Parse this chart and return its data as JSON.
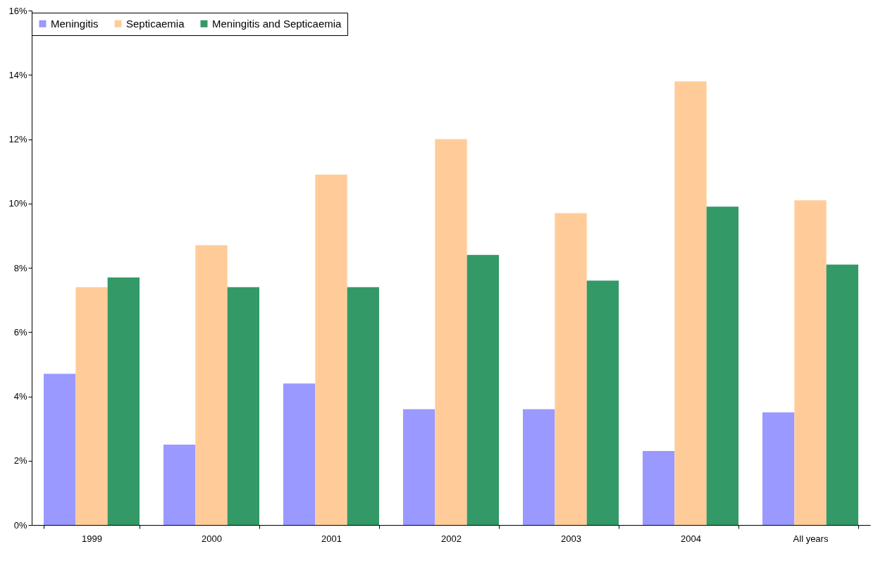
{
  "chart_data": {
    "type": "bar",
    "categories": [
      "1999",
      "2000",
      "2001",
      "2002",
      "2003",
      "2004",
      "All years"
    ],
    "series": [
      {
        "name": "Meningitis",
        "color": "#9999ff",
        "values": [
          4.7,
          2.5,
          4.4,
          3.6,
          3.6,
          2.3,
          3.5
        ]
      },
      {
        "name": "Septicaemia",
        "color": "#ffcc99",
        "values": [
          7.4,
          8.7,
          10.9,
          12.0,
          9.7,
          13.8,
          10.1
        ]
      },
      {
        "name": "Meningitis and Septicaemia",
        "color": "#339966",
        "values": [
          7.7,
          7.4,
          7.4,
          8.4,
          7.6,
          9.9,
          8.1
        ]
      }
    ],
    "ylim": [
      0,
      16
    ],
    "yticks": [
      {
        "value": 0,
        "label": "0%"
      },
      {
        "value": 2,
        "label": "2%"
      },
      {
        "value": 4,
        "label": "4%"
      },
      {
        "value": 6,
        "label": "6%"
      },
      {
        "value": 8,
        "label": "8%"
      },
      {
        "value": 10,
        "label": "10%"
      },
      {
        "value": 12,
        "label": "12%"
      },
      {
        "value": 14,
        "label": "14%"
      },
      {
        "value": 16,
        "label": "16%"
      }
    ],
    "grid": false,
    "legend": "top"
  }
}
